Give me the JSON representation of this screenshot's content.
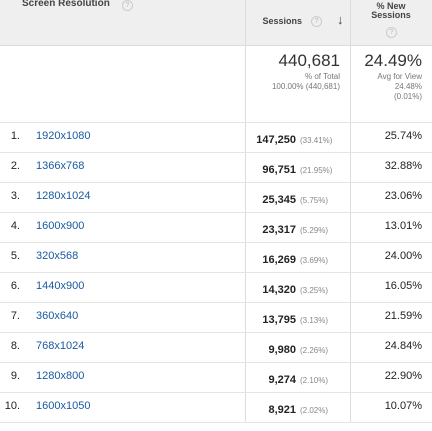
{
  "header": {
    "dimension": "Screen Resolution",
    "sessions": "Sessions",
    "new_sessions": "% New Sessions"
  },
  "totals": {
    "sessions": "440,681",
    "sessions_note": "% of Total",
    "sessions_share": "100.00% (440,681)",
    "new_sessions": "24.49%",
    "new_sessions_note": "Avg for View",
    "new_sessions_avg": "24.48%",
    "new_sessions_diff": "(0.01%)"
  },
  "rows": [
    {
      "index": "1.",
      "resolution": "1920x1080",
      "sessions": "147,250",
      "share": "(33.41%)",
      "new_sessions": "25.74%"
    },
    {
      "index": "2.",
      "resolution": "1366x768",
      "sessions": "96,751",
      "share": "(21.95%)",
      "new_sessions": "32.88%"
    },
    {
      "index": "3.",
      "resolution": "1280x1024",
      "sessions": "25,345",
      "share": "(5.75%)",
      "new_sessions": "23.06%"
    },
    {
      "index": "4.",
      "resolution": "1600x900",
      "sessions": "23,317",
      "share": "(5.29%)",
      "new_sessions": "13.01%"
    },
    {
      "index": "5.",
      "resolution": "320x568",
      "sessions": "16,269",
      "share": "(3.69%)",
      "new_sessions": "24.00%"
    },
    {
      "index": "6.",
      "resolution": "1440x900",
      "sessions": "14,320",
      "share": "(3.25%)",
      "new_sessions": "16.05%"
    },
    {
      "index": "7.",
      "resolution": "360x640",
      "sessions": "13,795",
      "share": "(3.13%)",
      "new_sessions": "21.59%"
    },
    {
      "index": "8.",
      "resolution": "768x1024",
      "sessions": "9,980",
      "share": "(2.26%)",
      "new_sessions": "24.84%"
    },
    {
      "index": "9.",
      "resolution": "1280x800",
      "sessions": "9,274",
      "share": "(2.10%)",
      "new_sessions": "22.90%"
    },
    {
      "index": "10.",
      "resolution": "1600x1050",
      "sessions": "8,921",
      "share": "(2.02%)",
      "new_sessions": "10.07%"
    }
  ]
}
